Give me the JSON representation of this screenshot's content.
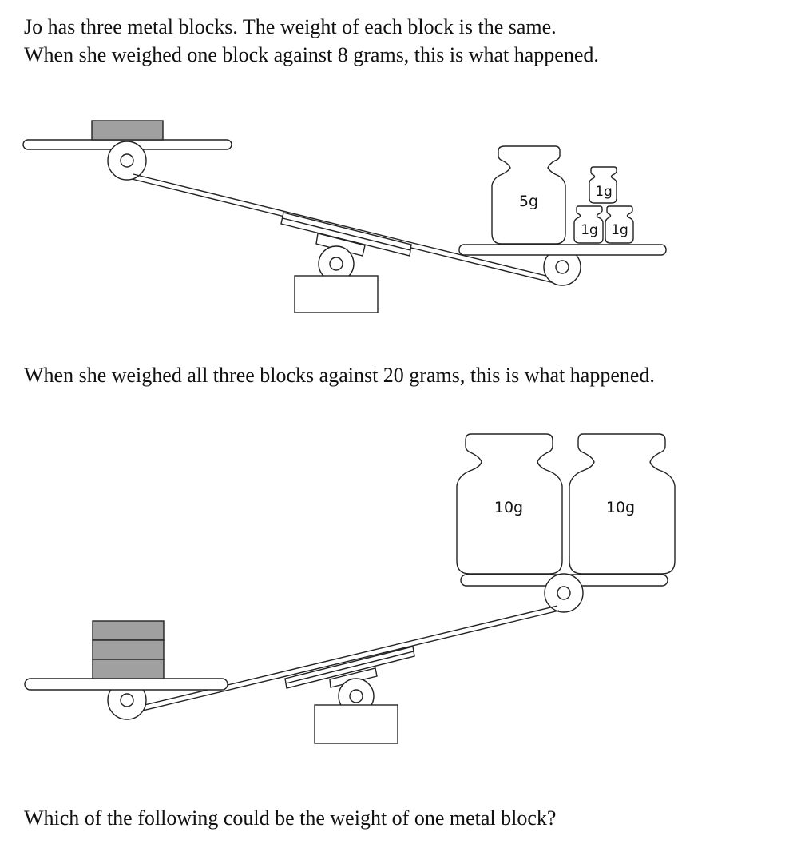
{
  "intro": {
    "line1": "Jo has three metal blocks. The weight of each block is the same.",
    "line2": "When she weighed one block against 8 grams, this is what happened."
  },
  "scale1": {
    "weights": [
      "5g",
      "1g",
      "1g",
      "1g"
    ]
  },
  "mid_text": "When she weighed all three blocks against 20 grams, this is what happened.",
  "scale2": {
    "weights": [
      "10g",
      "10g"
    ]
  },
  "question": "Which of the following could be the weight of one metal block?",
  "colors": {
    "block": "#a0a0a0",
    "stroke": "#222222"
  }
}
